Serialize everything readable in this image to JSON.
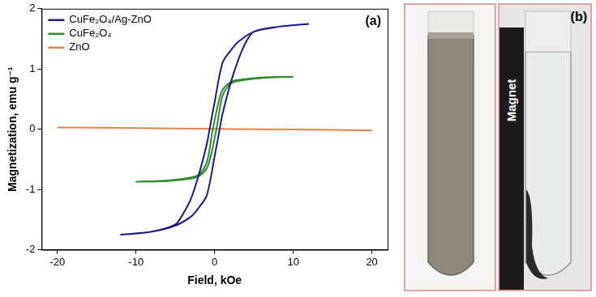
{
  "chart_data": {
    "type": "line",
    "x_label": "Field, kOe",
    "y_label": "Magnetization, emu g⁻¹",
    "annotations": [
      "(a)"
    ],
    "xlim": [
      -22,
      22
    ],
    "xticks": [
      -20,
      -10,
      0,
      10,
      20
    ],
    "ylim": [
      -2,
      2
    ],
    "yticks": [
      -2,
      -1,
      0,
      1,
      2
    ],
    "grid": false,
    "legend": "upper left",
    "series": [
      {
        "name": "CuFe₂O₄/Ag-ZnO",
        "color": "#1a1a8c",
        "x": [
          12,
          8,
          5,
          3,
          2,
          1,
          0,
          -0.5,
          -1,
          -2,
          -3,
          -4,
          -5,
          -8,
          -12,
          -8,
          -5,
          -3,
          -2,
          -1,
          0,
          0.5,
          1,
          2,
          3,
          4,
          5,
          8,
          12
        ],
        "values": [
          1.75,
          1.7,
          1.62,
          1.45,
          1.3,
          1.1,
          0.45,
          0.1,
          -0.25,
          -0.75,
          -1.15,
          -1.4,
          -1.58,
          -1.7,
          -1.75,
          -1.7,
          -1.6,
          -1.45,
          -1.3,
          -1.1,
          -0.45,
          -0.1,
          0.25,
          0.75,
          1.15,
          1.45,
          1.62,
          1.7,
          1.75
        ]
      },
      {
        "name": "CuFe₂O₄",
        "color": "#2e8b2e",
        "x": [
          10,
          6,
          3,
          2,
          1,
          0.5,
          0,
          -0.3,
          -1,
          -2,
          -3,
          -6,
          -10,
          -6,
          -3,
          -2,
          -1,
          -0.5,
          0,
          0.3,
          1,
          2,
          3,
          6,
          10
        ],
        "values": [
          0.87,
          0.86,
          0.82,
          0.78,
          0.65,
          0.45,
          0.15,
          -0.05,
          -0.55,
          -0.75,
          -0.8,
          -0.85,
          -0.87,
          -0.86,
          -0.82,
          -0.78,
          -0.65,
          -0.45,
          -0.15,
          0.05,
          0.55,
          0.75,
          0.8,
          0.85,
          0.87
        ]
      },
      {
        "name": "ZnO",
        "color": "#e8804a",
        "x": [
          -20,
          -10,
          0,
          10,
          20
        ],
        "values": [
          0.03,
          0.02,
          0.005,
          -0.005,
          -0.02
        ]
      }
    ]
  },
  "photo": {
    "label": "(b)",
    "text": "Magnet"
  }
}
